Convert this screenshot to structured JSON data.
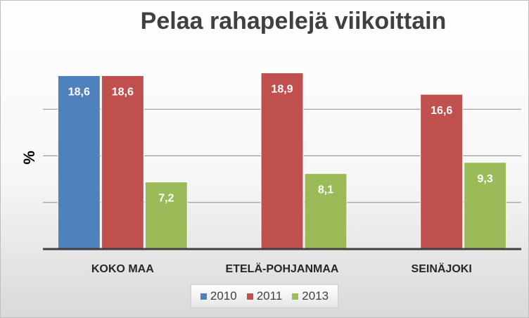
{
  "chart_data": {
    "type": "bar",
    "title": "Pelaa rahapelejä viikoittain",
    "ylabel": "%",
    "xlabel": "",
    "categories": [
      "KOKO MAA",
      "ETELÄ-POHJANMAA",
      "SEINÄJOKI"
    ],
    "series": [
      {
        "name": "2010",
        "color": "#4f81bd",
        "values": [
          18.6,
          null,
          null
        ],
        "labels": [
          "18,6",
          "",
          ""
        ]
      },
      {
        "name": "2011",
        "color": "#c0504d",
        "values": [
          18.6,
          18.9,
          16.6
        ],
        "labels": [
          "18,6",
          "18,9",
          "16,6"
        ]
      },
      {
        "name": "2013",
        "color": "#9bbb59",
        "values": [
          7.2,
          8.1,
          9.3
        ],
        "labels": [
          "7,2",
          "8,1",
          "9,3"
        ]
      }
    ],
    "ylim": [
      0,
      20
    ],
    "grid": true,
    "legend_position": "bottom"
  }
}
